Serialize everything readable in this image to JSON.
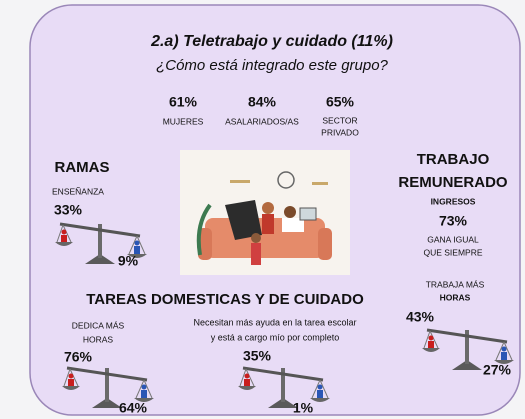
{
  "title": "2.a) Teletrabajo y cuidado (11%)",
  "subtitle": "¿Cómo está integrado este grupo?",
  "stats": [
    {
      "value": "61%",
      "label": [
        "MUJERES"
      ]
    },
    {
      "value": "84%",
      "label": [
        "ASALARIADOS/AS"
      ]
    },
    {
      "value": "65%",
      "label": [
        "SECTOR",
        "PRIVADO"
      ]
    }
  ],
  "ramas": {
    "heading": "RAMAS",
    "label": "ENSEÑANZA",
    "high": "33%",
    "low": "9%"
  },
  "trabajo": {
    "heading": [
      "TRABAJO",
      "REMUNERADO"
    ],
    "ingresos": {
      "label": "INGRESOS",
      "value": "73%",
      "note": [
        "GANA IGUAL",
        "QUE SIEMPRE"
      ]
    },
    "horas": {
      "label": [
        "TRABAJA MÁS",
        "HORAS"
      ],
      "high": "43%",
      "low": "27%"
    }
  },
  "tareas": {
    "heading": "TAREAS DOMESTICAS Y DE CUIDADO",
    "horas": {
      "label": [
        "DEDICA MÁS",
        "HORAS"
      ],
      "high": "76%",
      "low": "64%"
    },
    "ayuda": {
      "label": [
        "Necesitan más ayuda en la tarea escolar",
        "y está a cargo mío por completo"
      ],
      "high": "35%",
      "low": "1%"
    }
  }
}
